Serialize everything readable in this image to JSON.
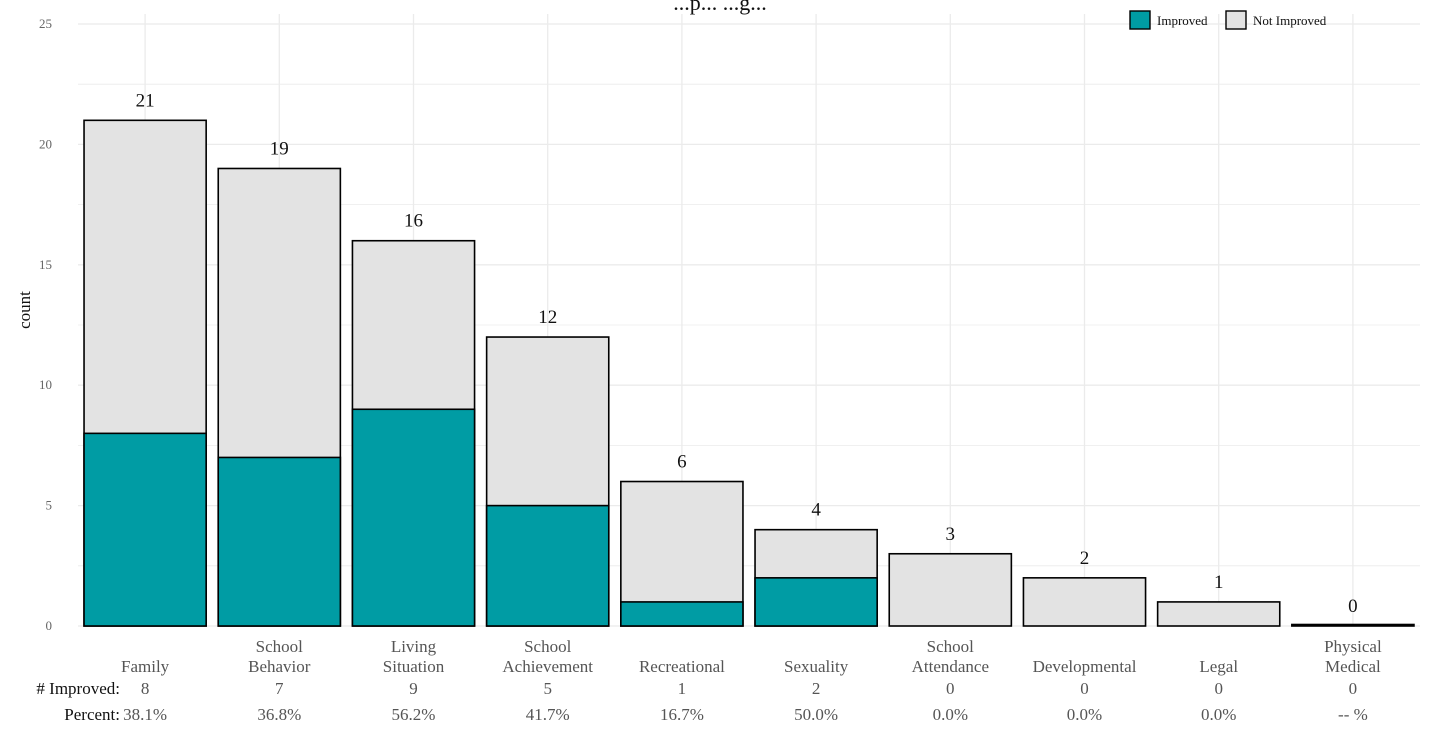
{
  "colors": {
    "improved": "#009ca4",
    "not_improved": "#e3e3e3",
    "bar_stroke": "#000000",
    "grid": "#ebebeb"
  },
  "chart_data": {
    "type": "bar",
    "stacked": true,
    "title": "...p... ...g...",
    "ylabel": "count",
    "xlabel": "",
    "ylim": [
      0,
      25
    ],
    "y_ticks": [
      0,
      5,
      10,
      15,
      20,
      25
    ],
    "grid": true,
    "legend_position": "top-right",
    "categories": [
      [
        "Family"
      ],
      [
        "School",
        "Behavior"
      ],
      [
        "Living",
        "Situation"
      ],
      [
        "School",
        "Achievement"
      ],
      [
        "Recreational"
      ],
      [
        "Sexuality"
      ],
      [
        "School",
        "Attendance"
      ],
      [
        "Developmental"
      ],
      [
        "Legal"
      ],
      [
        "Physical",
        "Medical"
      ]
    ],
    "series": [
      {
        "name": "Improved",
        "values": [
          8,
          7,
          9,
          5,
          1,
          2,
          0,
          0,
          0,
          0
        ]
      },
      {
        "name": "Not Improved",
        "values": [
          13,
          12,
          7,
          7,
          5,
          2,
          3,
          2,
          1,
          0
        ]
      }
    ],
    "totals": [
      "21",
      "19",
      "16",
      "12",
      "6",
      "4",
      "3",
      "2",
      "1",
      "0"
    ],
    "rows": [
      {
        "label": "# Improved:",
        "values": [
          "8",
          "7",
          "9",
          "5",
          "1",
          "2",
          "0",
          "0",
          "0",
          "0"
        ]
      },
      {
        "label": "Percent:",
        "values": [
          "38.1%",
          "36.8%",
          "56.2%",
          "41.7%",
          "16.7%",
          "50.0%",
          "0.0%",
          "0.0%",
          "0.0%",
          "-- %"
        ]
      }
    ]
  }
}
